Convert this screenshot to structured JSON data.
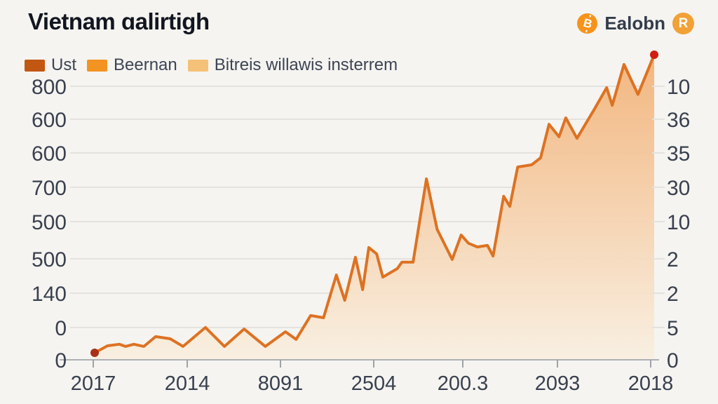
{
  "header": {
    "title": "Vietnam ɑalirtigh",
    "brand": {
      "coin_glyph": "B",
      "name": "Ealobn",
      "badge_glyph": "R",
      "coin_color": "#f7931a",
      "badge_color": "#f2a136"
    }
  },
  "legend": {
    "items": [
      {
        "label": "Ust",
        "color": "#c25712"
      },
      {
        "label": "Beernan",
        "color": "#f39422"
      },
      {
        "label": "Bitreis willawis insterrem",
        "color": "#f5c179"
      }
    ]
  },
  "chart_data": {
    "type": "area",
    "title": "Vietnam ɑalirtigh",
    "grid": true,
    "legend_position": "top-left",
    "xlim": [
      0,
      1
    ],
    "ylim": [
      0,
      100
    ],
    "x_tick_labels": [
      "2017",
      "2014",
      "8091",
      "2504",
      "200.3",
      "2093",
      "2018"
    ],
    "left_axis_tick_labels": [
      "800",
      "600",
      "600",
      "700",
      "500",
      "500",
      "140",
      "0",
      "0"
    ],
    "right_axis_tick_labels": [
      "10",
      "36",
      "35",
      "30",
      "10",
      "2",
      "2",
      "5",
      "0"
    ],
    "series": [
      {
        "name": "Ust",
        "points": [
          [
            0.0,
            2.3
          ],
          [
            0.023,
            4.6
          ],
          [
            0.044,
            5.1
          ],
          [
            0.055,
            4.4
          ],
          [
            0.07,
            5.1
          ],
          [
            0.088,
            4.4
          ],
          [
            0.109,
            7.6
          ],
          [
            0.135,
            6.9
          ],
          [
            0.158,
            4.4
          ],
          [
            0.198,
            10.6
          ],
          [
            0.232,
            4.4
          ],
          [
            0.267,
            10.1
          ],
          [
            0.305,
            4.4
          ],
          [
            0.341,
            9.2
          ],
          [
            0.36,
            6.7
          ],
          [
            0.386,
            14.5
          ],
          [
            0.409,
            13.8
          ],
          [
            0.432,
            27.8
          ],
          [
            0.447,
            19.5
          ],
          [
            0.466,
            33.6
          ],
          [
            0.479,
            23.0
          ],
          [
            0.49,
            36.8
          ],
          [
            0.504,
            34.7
          ],
          [
            0.515,
            27.1
          ],
          [
            0.541,
            29.9
          ],
          [
            0.549,
            32.0
          ],
          [
            0.569,
            32.0
          ],
          [
            0.593,
            59.3
          ],
          [
            0.612,
            42.8
          ],
          [
            0.639,
            32.9
          ],
          [
            0.655,
            40.9
          ],
          [
            0.668,
            38.2
          ],
          [
            0.684,
            37.0
          ],
          [
            0.702,
            37.5
          ],
          [
            0.712,
            34.0
          ],
          [
            0.731,
            53.6
          ],
          [
            0.742,
            50.3
          ],
          [
            0.756,
            63.2
          ],
          [
            0.781,
            63.9
          ],
          [
            0.797,
            66.2
          ],
          [
            0.812,
            77.2
          ],
          [
            0.83,
            73.1
          ],
          [
            0.842,
            79.3
          ],
          [
            0.862,
            72.6
          ],
          [
            0.892,
            81.8
          ],
          [
            0.915,
            89.2
          ],
          [
            0.925,
            83.4
          ],
          [
            0.946,
            96.8
          ],
          [
            0.971,
            87.0
          ],
          [
            1.0,
            100.0
          ]
        ]
      }
    ],
    "markers": {
      "start": true,
      "end": true
    },
    "colors": {
      "line": "#dd7222",
      "area_top": "#f2b176",
      "area_bottom": "#f9efe0",
      "start_marker": "#a93018",
      "end_marker": "#d01f10",
      "grid": "#e3e2df",
      "axis_line": "#adb0b4",
      "tick_mark": "#9fa2a6",
      "tick_text": "#39404e"
    }
  }
}
